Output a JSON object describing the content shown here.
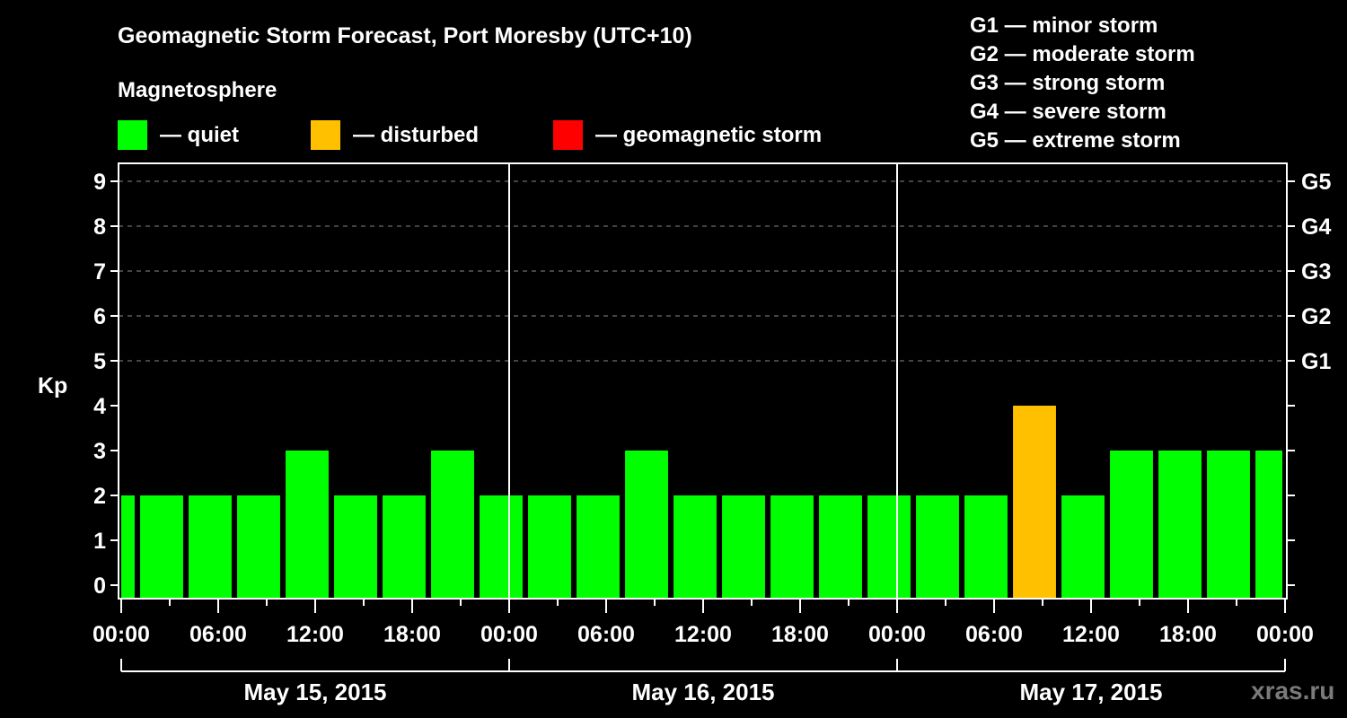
{
  "header": {
    "title": "Geomagnetic Storm Forecast, Port Moresby (UTC+10)",
    "magnetosphere_label": "Magnetosphere"
  },
  "legend": [
    {
      "label": "— quiet",
      "color": "#00ff00"
    },
    {
      "label": "— disturbed",
      "color": "#ffc000"
    },
    {
      "label": "— geomagnetic storm",
      "color": "#ff0000"
    }
  ],
  "g_scale_legend": [
    "G1 — minor storm",
    "G2 — moderate storm",
    "G3 — strong storm",
    "G4 — severe storm",
    "G5 — extreme storm"
  ],
  "watermark": "xras.ru",
  "colors": {
    "quiet": "#00ff00",
    "disturbed": "#ffc000",
    "storm": "#ff0000",
    "background": "#000000",
    "axis": "#ffffff",
    "grid": "#888888",
    "watermark": "#7a7a7a"
  },
  "chart_data": {
    "type": "bar",
    "title": "Geomagnetic Storm Forecast, Port Moresby (UTC+10)",
    "xlabel": "",
    "ylabel": "Kp",
    "ylim": [
      0,
      9
    ],
    "y_ticks": [
      0,
      1,
      2,
      3,
      4,
      5,
      6,
      7,
      8,
      9
    ],
    "right_axis_labels": [
      {
        "kp": 5,
        "label": "G1"
      },
      {
        "kp": 6,
        "label": "G2"
      },
      {
        "kp": 7,
        "label": "G3"
      },
      {
        "kp": 8,
        "label": "G4"
      },
      {
        "kp": 9,
        "label": "G5"
      }
    ],
    "grid": {
      "y_dashed_at": [
        5,
        6,
        7,
        8,
        9
      ]
    },
    "x_tick_labels": [
      "00:00",
      "06:00",
      "12:00",
      "18:00",
      "00:00",
      "06:00",
      "12:00",
      "18:00",
      "00:00",
      "06:00",
      "12:00",
      "18:00",
      "00:00"
    ],
    "days": [
      "May 15, 2015",
      "May 16, 2015",
      "May 17, 2015"
    ],
    "bar_hours": "3-hour Kp intervals, UTC+10 (shifted; first and last bars partially visible)",
    "bars": [
      {
        "start_h": -2,
        "end_h": 0.83,
        "kp": 2,
        "level": "quiet"
      },
      {
        "start_h": 1.17,
        "end_h": 3.83,
        "kp": 2,
        "level": "quiet"
      },
      {
        "start_h": 4.17,
        "end_h": 6.83,
        "kp": 2,
        "level": "quiet"
      },
      {
        "start_h": 7.17,
        "end_h": 9.83,
        "kp": 2,
        "level": "quiet"
      },
      {
        "start_h": 10.17,
        "end_h": 12.83,
        "kp": 3,
        "level": "quiet"
      },
      {
        "start_h": 13.17,
        "end_h": 15.83,
        "kp": 2,
        "level": "quiet"
      },
      {
        "start_h": 16.17,
        "end_h": 18.83,
        "kp": 2,
        "level": "quiet"
      },
      {
        "start_h": 19.17,
        "end_h": 21.83,
        "kp": 3,
        "level": "quiet"
      },
      {
        "start_h": 22.17,
        "end_h": 24.83,
        "kp": 2,
        "level": "quiet"
      },
      {
        "start_h": 25.17,
        "end_h": 27.83,
        "kp": 2,
        "level": "quiet"
      },
      {
        "start_h": 28.17,
        "end_h": 30.83,
        "kp": 2,
        "level": "quiet"
      },
      {
        "start_h": 31.17,
        "end_h": 33.83,
        "kp": 3,
        "level": "quiet"
      },
      {
        "start_h": 34.17,
        "end_h": 36.83,
        "kp": 2,
        "level": "quiet"
      },
      {
        "start_h": 37.17,
        "end_h": 39.83,
        "kp": 2,
        "level": "quiet"
      },
      {
        "start_h": 40.17,
        "end_h": 42.83,
        "kp": 2,
        "level": "quiet"
      },
      {
        "start_h": 43.17,
        "end_h": 45.83,
        "kp": 2,
        "level": "quiet"
      },
      {
        "start_h": 46.17,
        "end_h": 48.83,
        "kp": 2,
        "level": "quiet"
      },
      {
        "start_h": 49.17,
        "end_h": 51.83,
        "kp": 2,
        "level": "quiet"
      },
      {
        "start_h": 52.17,
        "end_h": 54.83,
        "kp": 2,
        "level": "quiet"
      },
      {
        "start_h": 55.17,
        "end_h": 57.83,
        "kp": 4,
        "level": "disturbed"
      },
      {
        "start_h": 58.17,
        "end_h": 60.83,
        "kp": 2,
        "level": "quiet"
      },
      {
        "start_h": 61.17,
        "end_h": 63.83,
        "kp": 3,
        "level": "quiet"
      },
      {
        "start_h": 64.17,
        "end_h": 66.83,
        "kp": 3,
        "level": "quiet"
      },
      {
        "start_h": 67.17,
        "end_h": 69.83,
        "kp": 3,
        "level": "quiet"
      },
      {
        "start_h": 70.17,
        "end_h": 72.0,
        "kp": 3,
        "level": "quiet"
      }
    ],
    "values": [
      2,
      2,
      2,
      2,
      3,
      2,
      2,
      3,
      2,
      2,
      2,
      3,
      2,
      2,
      2,
      2,
      2,
      2,
      2,
      4,
      2,
      3,
      3,
      3,
      3
    ]
  }
}
